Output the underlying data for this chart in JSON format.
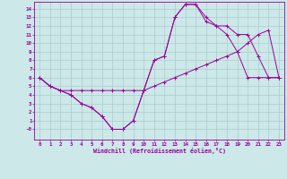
{
  "xlabel": "Windchill (Refroidissement éolien,°C)",
  "bg_color": "#cce8e8",
  "grid_color": "#aacccc",
  "line_color": "#990099",
  "xlim": [
    -0.5,
    23.5
  ],
  "ylim": [
    -1.2,
    14.8
  ],
  "xticks": [
    0,
    1,
    2,
    3,
    4,
    5,
    6,
    7,
    8,
    9,
    10,
    11,
    12,
    13,
    14,
    15,
    16,
    17,
    18,
    19,
    20,
    21,
    22,
    23
  ],
  "ytick_vals": [
    14,
    13,
    12,
    11,
    10,
    9,
    8,
    7,
    6,
    5,
    4,
    3,
    2,
    1,
    0
  ],
  "ytick_labels": [
    "14",
    "13",
    "12",
    "11",
    "10",
    "9",
    "8",
    "7",
    "6",
    "5",
    "4",
    "3",
    "2",
    "1",
    "-0"
  ],
  "curve1_x": [
    0,
    1,
    2,
    3,
    4,
    5,
    6,
    7,
    8,
    9,
    10,
    11,
    12,
    13,
    14,
    15,
    16,
    17,
    18,
    19,
    20,
    21,
    22,
    23
  ],
  "curve1_y": [
    6,
    5,
    4.5,
    4,
    3,
    2.5,
    1.5,
    0,
    0,
    1,
    4.5,
    8,
    8.5,
    13,
    14.5,
    14.5,
    13,
    12,
    12,
    11,
    11,
    8.5,
    6,
    6
  ],
  "curve2_x": [
    0,
    1,
    2,
    3,
    4,
    5,
    6,
    7,
    8,
    9,
    10,
    11,
    12,
    13,
    14,
    15,
    16,
    17,
    18,
    19,
    20,
    21,
    22,
    23
  ],
  "curve2_y": [
    6,
    5,
    4.5,
    4.5,
    4.5,
    4.5,
    4.5,
    4.5,
    4.5,
    4.5,
    4.5,
    5,
    5.5,
    6,
    6.5,
    7,
    7.5,
    8,
    8.5,
    9,
    10,
    11,
    11.5,
    6
  ],
  "curve3_x": [
    0,
    1,
    2,
    3,
    4,
    5,
    6,
    7,
    8,
    9,
    10,
    11,
    12,
    13,
    14,
    15,
    16,
    17,
    18,
    19,
    20,
    21,
    22,
    23
  ],
  "curve3_y": [
    6,
    5,
    4.5,
    4,
    3,
    2.5,
    1.5,
    0,
    0,
    1,
    4.5,
    8,
    8.5,
    13,
    14.5,
    14.5,
    12.5,
    12,
    11,
    9,
    6,
    6,
    6,
    6
  ],
  "marker_size": 2.5,
  "linewidth": 0.7,
  "tick_fontsize": 4.2,
  "xlabel_fontsize": 4.8
}
